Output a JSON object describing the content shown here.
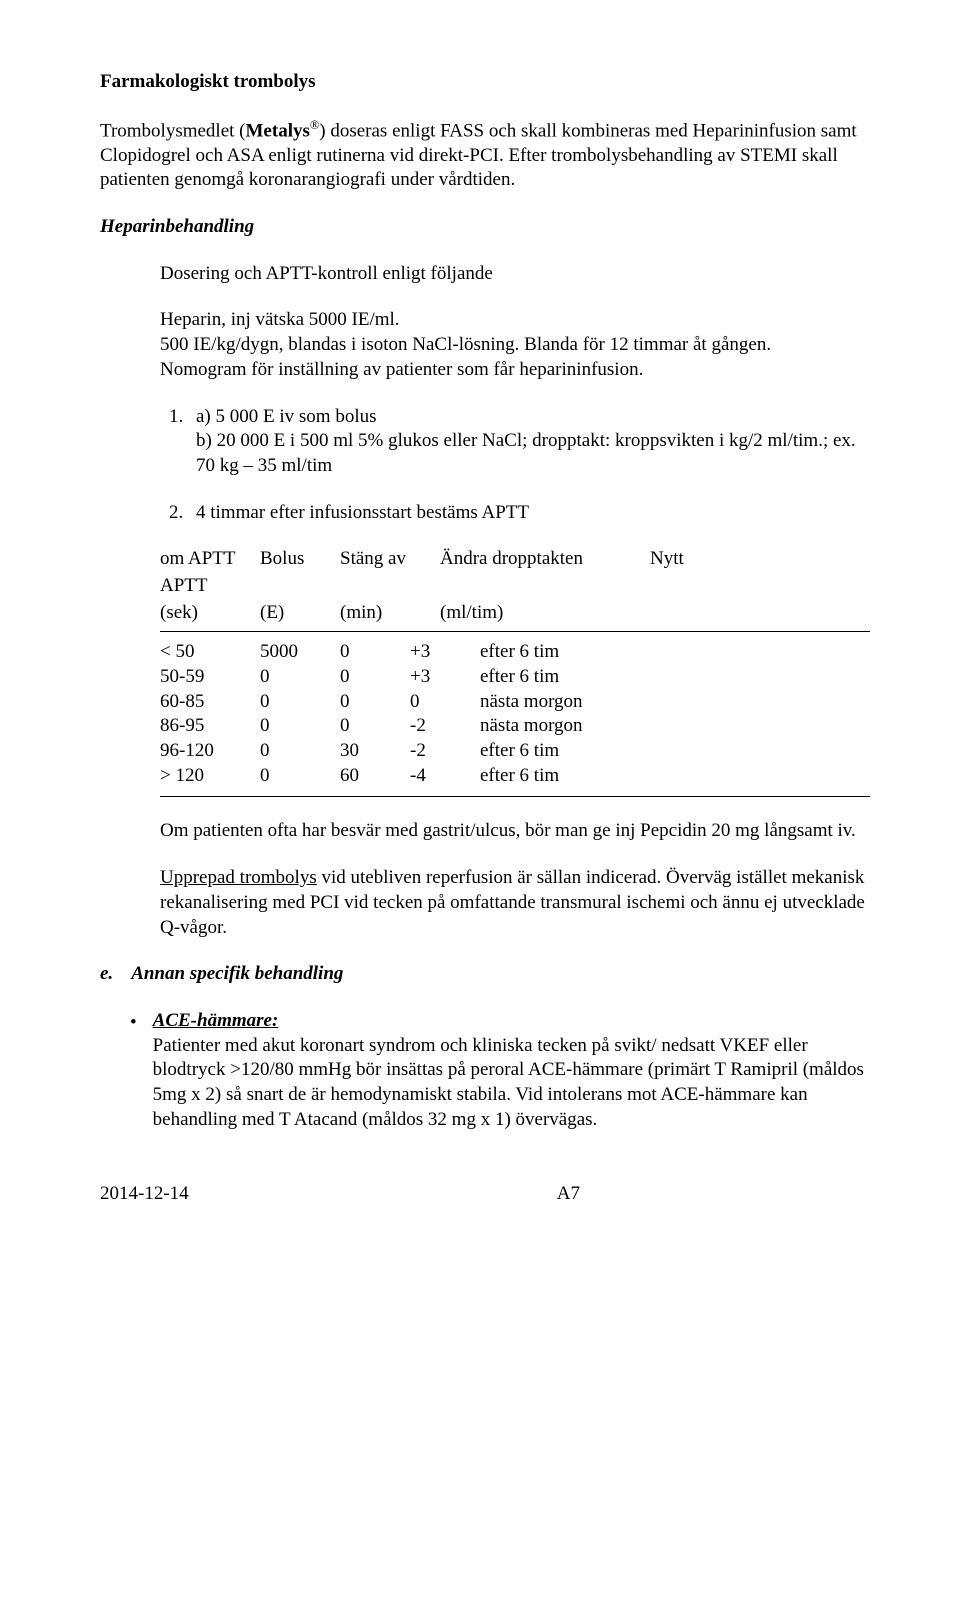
{
  "title": "Farmakologiskt trombolys",
  "p1_a": "Trombolysmedlet (",
  "p1_med": "Metalys",
  "p1_sup": "®",
  "p1_b": ") doseras enligt FASS och skall kombineras med Heparininfusion samt Clopidogrel och ASA enligt rutinerna vid direkt-PCI. Efter trombolysbehandling av STEMI skall patienten genomgå koronarangiografi under vårdtiden.",
  "h_hep": "Heparinbehandling",
  "p2": "Dosering och APTT-kontroll enligt följande",
  "p3": "Heparin, inj vätska 5000 IE/ml.",
  "p4": "500 IE/kg/dygn, blandas i isoton NaCl-lösning. Blanda för 12 timmar åt gången.",
  "p5": "Nomogram för inställning av patienter som får heparininfusion.",
  "li1": "a) 5 000 E iv som bolus\nb) 20 000 E i 500 ml 5% glukos eller NaCl; dropptakt: kroppsvikten i kg/2  ml/tim.; ex. 70 kg – 35 ml/tim",
  "li2": "4 timmar efter infusionsstart bestäms APTT",
  "th": {
    "c1a": "om APTT",
    "c1b": "APTT",
    "c1c": "(sek)",
    "c2a": "Bolus",
    "c2c": "(E)",
    "c3a": "Stäng av",
    "c3c": "(min)",
    "c4a": "Ändra dropptakten",
    "c4c": "(ml/tim)",
    "c5a": "Nytt"
  },
  "rows": [
    {
      "r": "< 50",
      "bolus": "5000",
      "stop": "0",
      "drop": "+3",
      "next": "efter 6 tim"
    },
    {
      "r": "50-59",
      "bolus": "0",
      "stop": "0",
      "drop": "+3",
      "next": "efter 6 tim"
    },
    {
      "r": "60-85",
      "bolus": "0",
      "stop": "0",
      "drop": "0",
      "next": "nästa morgon"
    },
    {
      "r": "86-95",
      "bolus": "0",
      "stop": "0",
      "drop": "-2",
      "next": "nästa morgon"
    },
    {
      "r": "96-120",
      "bolus": "0",
      "stop": "30",
      "drop": "-2",
      "next": "efter 6 tim"
    },
    {
      "r": "> 120",
      "bolus": "0",
      "stop": "60",
      "drop": "-4",
      "next": "efter 6 tim"
    }
  ],
  "p6": "Om patienten ofta har besvär med gastrit/ulcus, bör man ge inj Pepcidin 20 mg långsamt iv.",
  "p7_a": "Upprepad trombolys",
  "p7_b": " vid utebliven reperfusion är sällan indicerad. Överväg istället mekanisk rekanalisering med PCI vid tecken på omfattande transmural ischemi och ännu ej utvecklade Q-vågor.",
  "e_label": "e.",
  "e_text": "Annan specifik behandling",
  "ace_h": "ACE-hämmare:",
  "ace_body": "Patienter med akut koronart syndrom och kliniska tecken på svikt/ nedsatt VKEF eller blodtryck >120/80 mmHg bör insättas på peroral ACE-hämmare (primärt T Ramipril (måldos 5mg x 2) så snart de är hemodynamiskt stabila. Vid intolerans mot ACE-hämmare kan behandling med T Atacand (måldos 32 mg x 1) övervägas.",
  "footer_date": "2014-12-14",
  "footer_page": "A7",
  "colors": {
    "text": "#000000",
    "bg": "#ffffff",
    "rule": "#000000"
  }
}
